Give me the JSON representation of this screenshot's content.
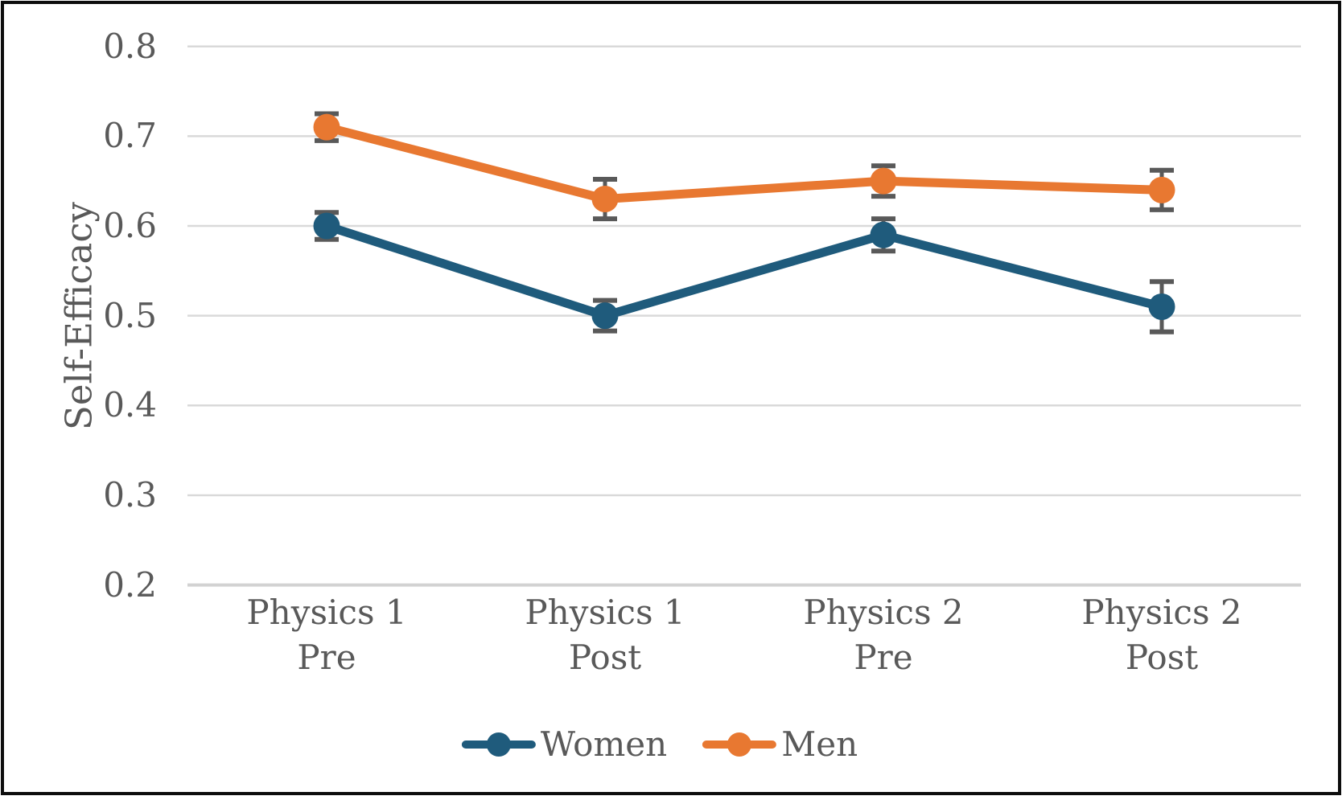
{
  "chart_data": {
    "type": "line",
    "title": "",
    "xlabel": "",
    "ylabel": "Self-Efficacy",
    "categories": [
      "Physics 1\nPre",
      "Physics 1\nPost",
      "Physics 2\nPre",
      "Physics 2\nPost"
    ],
    "yticks": [
      0.8,
      0.7,
      0.6,
      0.5,
      0.4,
      0.3,
      0.2
    ],
    "ylim": [
      0.2,
      0.8
    ],
    "grid": true,
    "legend_position": "bottom-center",
    "series": [
      {
        "name": "Women",
        "color": "#1F5B7C",
        "values": [
          0.6,
          0.5,
          0.59,
          0.51
        ],
        "errors": [
          0.015,
          0.017,
          0.018,
          0.028
        ]
      },
      {
        "name": "Men",
        "color": "#E87831",
        "values": [
          0.71,
          0.63,
          0.65,
          0.64
        ],
        "errors": [
          0.015,
          0.022,
          0.017,
          0.022
        ]
      }
    ],
    "colors": {
      "gridline": "#D9D9D9",
      "axis_line": "#D2D2D2",
      "error_bar": "#595959",
      "text": "#595959",
      "frame_border": "#0D0D0D"
    }
  }
}
